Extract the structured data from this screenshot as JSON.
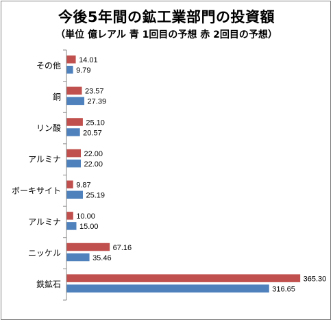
{
  "chart_data": {
    "type": "bar",
    "orientation": "horizontal",
    "title": "今後5年間の鉱工業部門の投資額",
    "subtitle": "（単位 億レアル 青  1回目の予想 赤  2回目の予想）",
    "categories": [
      "その他",
      "銅",
      "リン酸",
      "アルミナ",
      "ボーキサイト",
      "アルミナ",
      "ニッケル",
      "鉄鉱石"
    ],
    "series": [
      {
        "values": [
          14.01,
          23.57,
          25.1,
          22.0,
          9.87,
          10.0,
          67.16,
          365.3
        ],
        "color": "#c0504d"
      },
      {
        "values": [
          9.79,
          27.39,
          20.57,
          22.0,
          25.19,
          15.0,
          35.46,
          316.65
        ],
        "color": "#4f81bd"
      }
    ],
    "value_labels": [
      [
        "14.01",
        "23.57",
        "25.10",
        "22.00",
        "9.87",
        "10.00",
        "67.16",
        "365.30"
      ],
      [
        "9.79",
        "27.39",
        "20.57",
        "22.00",
        "25.19",
        "15.00",
        "35.46",
        "316.65"
      ]
    ],
    "xlim": [
      0,
      400
    ],
    "grid": false,
    "legend": "none"
  }
}
